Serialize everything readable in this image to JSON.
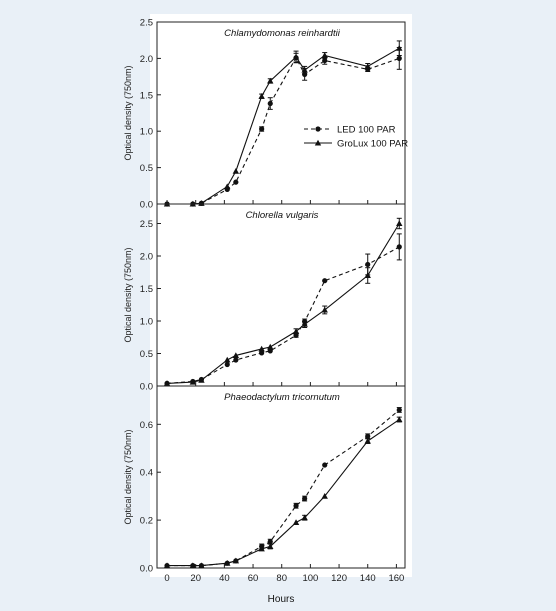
{
  "chart_data": {
    "type": "line",
    "xlabel": "Hours",
    "xlim": [
      -7,
      166
    ],
    "xticks": [
      0,
      20,
      40,
      60,
      80,
      100,
      120,
      140,
      160
    ],
    "legend": {
      "placement": "right-middle of top panel",
      "entries": [
        {
          "name": "LED 100 PAR",
          "style": "dashed",
          "marker": "circle"
        },
        {
          "name": "GroLux 100 PAR",
          "style": "solid",
          "marker": "triangle"
        }
      ]
    },
    "panels": [
      {
        "title": "Chlamydomonas reinhardtii",
        "ylabel": "Optical density (750nm)",
        "ylim": [
          0,
          2.5
        ],
        "yticks": [
          "0.0",
          "0.5",
          "1.0",
          "1.5",
          "2.0",
          "2.5"
        ],
        "series": [
          {
            "name": "LED 100 PAR",
            "x": [
              0,
              18,
              24,
              42,
              48,
              66,
              72,
              90,
              96,
              110,
              140,
              162
            ],
            "y": [
              0.0,
              0.0,
              0.01,
              0.2,
              0.3,
              1.03,
              1.38,
              2.01,
              1.78,
              1.97,
              1.85,
              2.0
            ],
            "err": [
              0,
              0,
              0,
              0,
              0,
              0.03,
              0.08,
              0.06,
              0.08,
              0.05,
              0.03,
              0.15
            ]
          },
          {
            "name": "GroLux 100 PAR",
            "x": [
              0,
              18,
              24,
              42,
              48,
              66,
              72,
              90,
              96,
              110,
              140,
              162
            ],
            "y": [
              0.0,
              0.0,
              0.01,
              0.24,
              0.45,
              1.48,
              1.69,
              2.02,
              1.84,
              2.04,
              1.89,
              2.14
            ],
            "err": [
              0,
              0,
              0,
              0,
              0,
              0.03,
              0.03,
              0.08,
              0.05,
              0.04,
              0.04,
              0.1
            ]
          }
        ]
      },
      {
        "title": "Chlorella vulgaris",
        "ylabel": "Optical density (750nm)",
        "ylim": [
          0,
          2.8
        ],
        "yticks": [
          "0.0",
          "0.5",
          "1.0",
          "1.5",
          "2.0",
          "2.5"
        ],
        "series": [
          {
            "name": "LED 100 PAR",
            "x": [
              0,
              18,
              24,
              42,
              48,
              66,
              72,
              90,
              96,
              110,
              140,
              162
            ],
            "y": [
              0.04,
              0.07,
              0.1,
              0.33,
              0.4,
              0.51,
              0.54,
              0.78,
              0.99,
              1.62,
              1.87,
              2.14
            ],
            "err": [
              0,
              0,
              0,
              0,
              0,
              0,
              0,
              0.03,
              0.04,
              0,
              0.16,
              0.2
            ]
          },
          {
            "name": "GroLux 100 PAR",
            "x": [
              0,
              18,
              24,
              42,
              48,
              66,
              72,
              90,
              96,
              110,
              140,
              162
            ],
            "y": [
              0.04,
              0.06,
              0.09,
              0.4,
              0.47,
              0.57,
              0.6,
              0.84,
              0.95,
              1.17,
              1.7,
              2.5
            ],
            "err": [
              0,
              0,
              0,
              0,
              0,
              0,
              0,
              0.04,
              0.05,
              0.06,
              0.12,
              0.08
            ]
          }
        ]
      },
      {
        "title": "Phaeodactylum tricornutum",
        "ylabel": "Optical density (750nm)",
        "ylim": [
          0,
          0.76
        ],
        "yticks": [
          "0.0",
          "0.2",
          "0.4",
          "0.6"
        ],
        "series": [
          {
            "name": "LED 100 PAR",
            "x": [
              0,
              18,
              24,
              42,
              48,
              66,
              72,
              90,
              96,
              110,
              140,
              162
            ],
            "y": [
              0.01,
              0.01,
              0.01,
              0.02,
              0.03,
              0.09,
              0.11,
              0.26,
              0.29,
              0.43,
              0.55,
              0.66
            ],
            "err": [
              0,
              0,
              0,
              0,
              0,
              0.01,
              0.01,
              0.01,
              0.01,
              0,
              0.01,
              0.01
            ]
          },
          {
            "name": "GroLux 100 PAR",
            "x": [
              0,
              18,
              24,
              42,
              48,
              66,
              72,
              90,
              96,
              110,
              140,
              162
            ],
            "y": [
              0.01,
              0.01,
              0.01,
              0.02,
              0.03,
              0.08,
              0.09,
              0.19,
              0.21,
              0.3,
              0.53,
              0.62
            ],
            "err": [
              0,
              0,
              0,
              0,
              0,
              0,
              0.01,
              0,
              0.01,
              0,
              0.01,
              0.01
            ]
          }
        ]
      }
    ]
  }
}
